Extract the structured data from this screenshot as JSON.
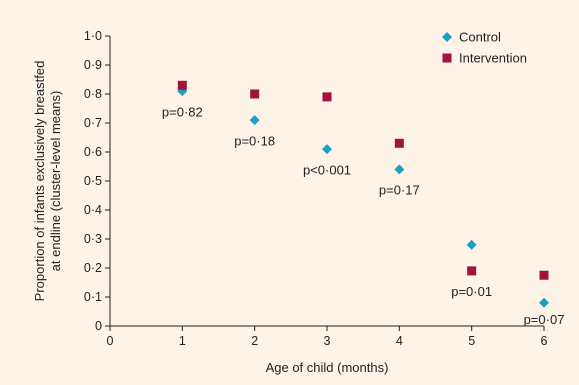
{
  "chart_data": {
    "type": "scatter",
    "xlabel": "Age of child (months)",
    "ylabel_lines": [
      "Proportion of infants exclusively breastfed",
      "at endline (cluster-level means)"
    ],
    "xlim": [
      0,
      6
    ],
    "ylim": [
      0,
      1
    ],
    "x_ticks": [
      {
        "value": 0,
        "label": "0"
      },
      {
        "value": 1,
        "label": "1"
      },
      {
        "value": 2,
        "label": "2"
      },
      {
        "value": 3,
        "label": "3"
      },
      {
        "value": 4,
        "label": "4"
      },
      {
        "value": 5,
        "label": "5"
      },
      {
        "value": 6,
        "label": "6"
      }
    ],
    "y_ticks": [
      {
        "value": 0,
        "label": "0"
      },
      {
        "value": 0.1,
        "label": "0·1"
      },
      {
        "value": 0.2,
        "label": "0·2"
      },
      {
        "value": 0.3,
        "label": "0·3"
      },
      {
        "value": 0.4,
        "label": "0·4"
      },
      {
        "value": 0.5,
        "label": "0·5"
      },
      {
        "value": 0.6,
        "label": "0·6"
      },
      {
        "value": 0.7,
        "label": "0·7"
      },
      {
        "value": 0.8,
        "label": "0·8"
      },
      {
        "value": 0.9,
        "label": "0·9"
      },
      {
        "value": 1.0,
        "label": "1·0"
      }
    ],
    "series": [
      {
        "name": "Control",
        "marker": "diamond",
        "color": "#1e9fc4",
        "x": [
          1,
          2,
          3,
          4,
          5,
          6
        ],
        "y": [
          0.81,
          0.71,
          0.61,
          0.54,
          0.28,
          0.08
        ]
      },
      {
        "name": "Intervention",
        "marker": "square",
        "color": "#a3123e",
        "x": [
          1,
          2,
          3,
          4,
          5,
          6
        ],
        "y": [
          0.83,
          0.8,
          0.79,
          0.63,
          0.19,
          0.175
        ]
      }
    ],
    "annotations": [
      {
        "x": 1,
        "y": 0.74,
        "text": "p=0·82"
      },
      {
        "x": 2,
        "y": 0.64,
        "text": "p=0·18"
      },
      {
        "x": 3,
        "y": 0.54,
        "text": "p<0·001"
      },
      {
        "x": 4,
        "y": 0.47,
        "text": "p=0·17"
      },
      {
        "x": 5,
        "y": 0.12,
        "text": "p=0·01"
      },
      {
        "x": 6,
        "y": 0.025,
        "text": "p=0·07"
      }
    ],
    "legend": "top-right",
    "grid": false
  },
  "colors": {
    "background": "#fdf3e7",
    "axis": "#222222"
  }
}
